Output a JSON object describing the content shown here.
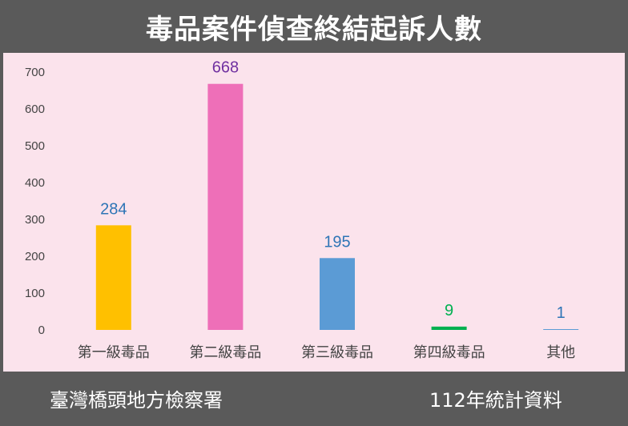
{
  "chart_data": {
    "type": "bar",
    "title": "毒品案件偵查終結起訴人數",
    "categories": [
      "第一級毒品",
      "第二級毒品",
      "第三級毒品",
      "第四級毒品",
      "其他"
    ],
    "values": [
      284,
      668,
      195,
      9,
      1
    ],
    "value_labels": [
      "284",
      "668",
      "195",
      "9",
      "1"
    ],
    "bar_colors": [
      "#ffc000",
      "#ee6fb8",
      "#5b9bd5",
      "#00b050",
      "#5b9bd5"
    ],
    "label_colors": [
      "#2e75b6",
      "#7030a0",
      "#2e75b6",
      "#00b050",
      "#2e75b6"
    ],
    "ylim": [
      0,
      700
    ],
    "yticks": [
      "0",
      "100",
      "200",
      "300",
      "400",
      "500",
      "600",
      "700"
    ],
    "grid": false,
    "legend": "none"
  },
  "footer": {
    "source": "臺灣橋頭地方檢察署",
    "note": "112年統計資料"
  },
  "colors": {
    "frame": "#5a5a5a",
    "plot_background": "#fbe3ec",
    "title_text": "#ffffff"
  }
}
